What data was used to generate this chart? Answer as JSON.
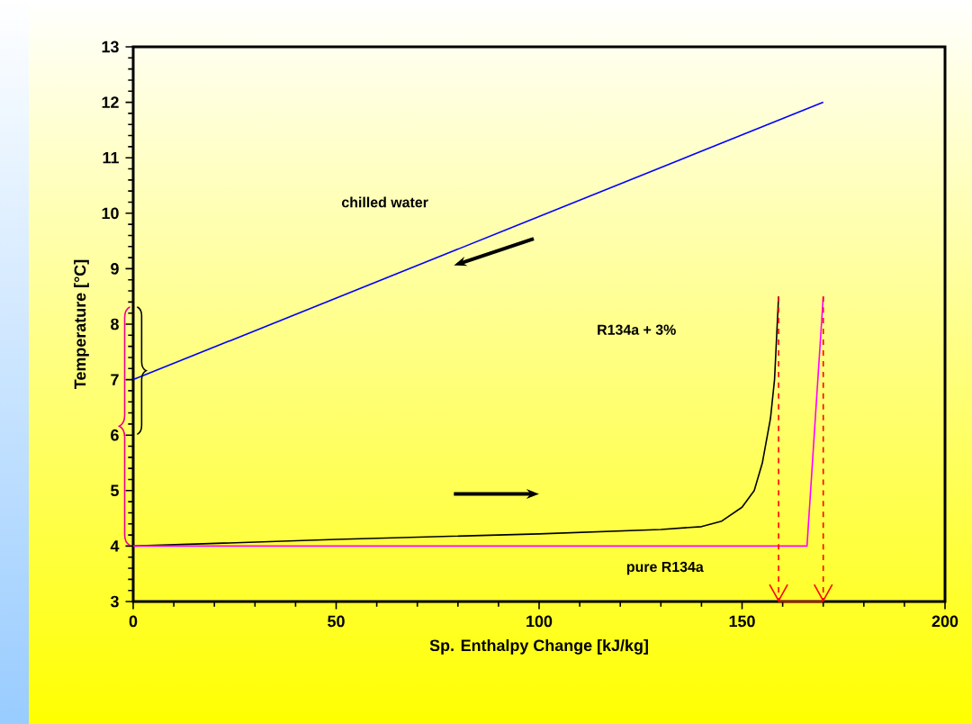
{
  "chart_data": {
    "type": "line",
    "xlabel": "Sp. Enthalpy Change [kJ/kg]",
    "ylabel": "Temperature [°C]",
    "xlim": [
      0,
      200
    ],
    "ylim": [
      3,
      13
    ],
    "xticks": [
      0,
      50,
      100,
      150,
      200
    ],
    "yticks": [
      3,
      4,
      5,
      6,
      7,
      8,
      9,
      10,
      11,
      12,
      13
    ],
    "grid": false,
    "marker": "none",
    "series": [
      {
        "color": "#0000ff",
        "x": [
          0,
          170
        ],
        "values": [
          7,
          12
        ]
      },
      {
        "color": "#000000",
        "x": [
          0,
          50,
          100,
          130,
          140,
          145,
          150,
          153,
          155,
          157,
          158,
          159
        ],
        "values": [
          4.0,
          4.12,
          4.22,
          4.3,
          4.35,
          4.45,
          4.7,
          5.0,
          5.5,
          6.3,
          7.0,
          8.5
        ]
      },
      {
        "color": "#ff00ff",
        "x": [
          0,
          166,
          170
        ],
        "values": [
          4,
          4,
          8.5
        ]
      },
      {
        "color": "#ff0000",
        "line_style": "dashed",
        "x": [
          159,
          159
        ],
        "values": [
          8.5,
          3
        ]
      },
      {
        "color": "#ff0000",
        "line_style": "dashed",
        "x": [
          170,
          170
        ],
        "values": [
          8.5,
          3
        ]
      },
      {
        "color": "#ff0000",
        "x": [
          159,
          170
        ],
        "values": [
          3,
          3
        ]
      }
    ],
    "annotations": [
      "chilled water",
      "R134a + 3%",
      "pure R134a"
    ]
  }
}
